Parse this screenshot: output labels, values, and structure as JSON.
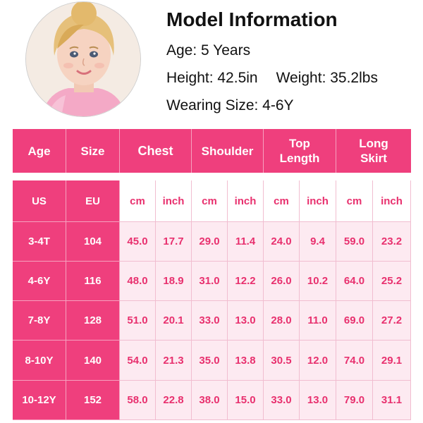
{
  "model": {
    "title": "Model Information",
    "age": "Age: 5 Years",
    "height": "Height: 42.5in",
    "weight": "Weight: 35.2lbs",
    "wearing_size": "Wearing Size: 4-6Y"
  },
  "header": [
    "Age",
    "Size",
    "Chest",
    "Shoulder",
    "Top Length",
    "Long Skirt"
  ],
  "sub_header": [
    "US",
    "EU",
    "cm",
    "inch",
    "cm",
    "inch",
    "cm",
    "inch",
    "cm",
    "inch"
  ],
  "rows": [
    [
      "3-4T",
      "104",
      "45.0",
      "17.7",
      "29.0",
      "11.4",
      "24.0",
      "9.4",
      "59.0",
      "23.2"
    ],
    [
      "4-6Y",
      "116",
      "48.0",
      "18.9",
      "31.0",
      "12.2",
      "26.0",
      "10.2",
      "64.0",
      "25.2"
    ],
    [
      "7-8Y",
      "128",
      "51.0",
      "20.1",
      "33.0",
      "13.0",
      "28.0",
      "11.0",
      "69.0",
      "27.2"
    ],
    [
      "8-10Y",
      "140",
      "54.0",
      "21.3",
      "35.0",
      "13.8",
      "30.5",
      "12.0",
      "74.0",
      "29.1"
    ],
    [
      "10-12Y",
      "152",
      "58.0",
      "22.8",
      "38.0",
      "15.0",
      "33.0",
      "13.0",
      "79.0",
      "31.1"
    ]
  ],
  "colors": {
    "accent": "#ef3f7d",
    "light_fill": "#fdeaf1",
    "value_text": "#e8306e"
  }
}
